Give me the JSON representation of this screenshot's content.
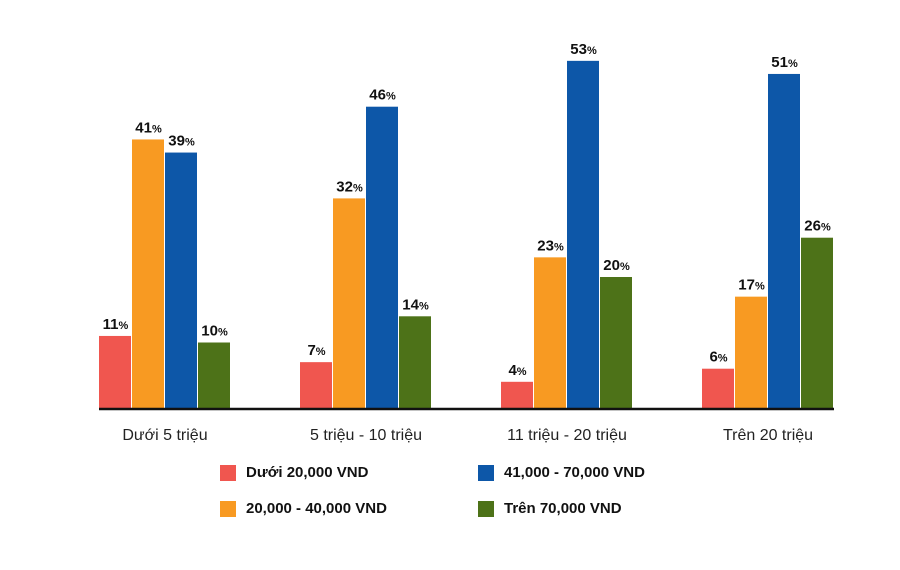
{
  "chart_data": {
    "type": "bar",
    "categories": [
      "Dưới 5 triệu",
      "5 triệu - 10 triệu",
      "11 triệu - 20 triệu",
      "Trên 20 triệu"
    ],
    "series": [
      {
        "name": "Dưới 20,000 VND",
        "color": "#f0564f",
        "values": [
          11,
          7,
          4,
          6
        ]
      },
      {
        "name": "20,000 - 40,000 VND",
        "color": "#f89a22",
        "values": [
          41,
          32,
          23,
          17
        ]
      },
      {
        "name": "41,000 - 70,000 VND",
        "color": "#0d57a8",
        "values": [
          39,
          46,
          53,
          51
        ]
      },
      {
        "name": "Trên 70,000 VND",
        "color": "#4d7218",
        "values": [
          10,
          14,
          20,
          26
        ]
      }
    ],
    "value_suffix": "%",
    "ylim": [
      0,
      55
    ],
    "grid": false,
    "legend_position": "bottom"
  }
}
